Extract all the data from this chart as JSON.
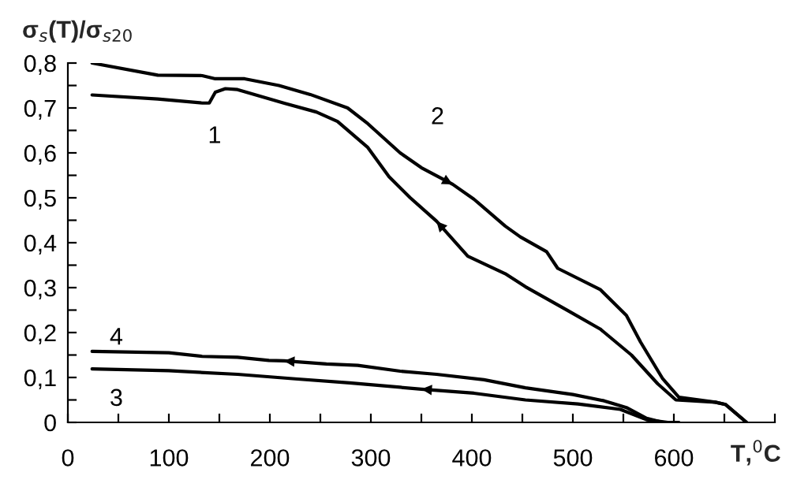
{
  "chart_data": {
    "type": "line",
    "xlabel": "T,$^{0}$C",
    "ylabel": "σ$_{s}$(T)/σ$_{s20}$",
    "xlim": [
      0,
      700
    ],
    "ylim": [
      0,
      0.8
    ],
    "xticks": [
      0,
      {
        "value": 50,
        "label": null
      },
      100,
      {
        "value": 150,
        "label": null
      },
      200,
      {
        "value": 250,
        "label": null
      },
      300,
      {
        "value": 350,
        "label": null
      },
      400,
      {
        "value": 450,
        "label": null
      },
      500,
      {
        "value": 550,
        "label": null
      },
      600,
      {
        "value": 650,
        "label": null
      },
      {
        "value": 700,
        "label": null
      }
    ],
    "yticks": [
      {
        "value": 0,
        "label": "0"
      },
      {
        "value": 0.05,
        "label": null
      },
      {
        "value": 0.1,
        "label": "0,1"
      },
      {
        "value": 0.15,
        "label": null
      },
      {
        "value": 0.2,
        "label": "0,2"
      },
      {
        "value": 0.25,
        "label": null
      },
      {
        "value": 0.3,
        "label": "0,3"
      },
      {
        "value": 0.35,
        "label": null
      },
      {
        "value": 0.4,
        "label": "0,4"
      },
      {
        "value": 0.45,
        "label": null
      },
      {
        "value": 0.5,
        "label": "0,5"
      },
      {
        "value": 0.55,
        "label": null
      },
      {
        "value": 0.6,
        "label": "0,6"
      },
      {
        "value": 0.65,
        "label": null
      },
      {
        "value": 0.7,
        "label": "0,7"
      },
      {
        "value": 0.75,
        "label": null
      },
      {
        "value": 0.8,
        "label": "0,8"
      }
    ],
    "grid": false,
    "legend": false,
    "marker": "none",
    "line_style": "solid",
    "series": [
      {
        "name": "1",
        "color": "#000000",
        "x": [
          672,
          651,
          641,
          602,
          584,
          558,
          527,
          495,
          453,
          433,
          396,
          365,
          339,
          318,
          297,
          267,
          246,
          215,
          168,
          156,
          146,
          140,
          133,
          89,
          24
        ],
        "values": [
          0,
          0.04,
          0.045,
          0.05,
          0.086,
          0.15,
          0.208,
          0.249,
          0.302,
          0.331,
          0.37,
          0.448,
          0.5,
          0.547,
          0.612,
          0.67,
          0.691,
          0.71,
          0.741,
          0.743,
          0.735,
          0.711,
          0.711,
          0.72,
          0.729
        ]
      },
      {
        "name": "2",
        "color": "#000000",
        "x": [
          24,
          89,
          133,
          146,
          175,
          209,
          240,
          277,
          297,
          329,
          350,
          381,
          402,
          433,
          448,
          474,
          485,
          527,
          553,
          567,
          589,
          605,
          641,
          651,
          672
        ],
        "values": [
          0.8,
          0.773,
          0.772,
          0.765,
          0.765,
          0.75,
          0.73,
          0.7,
          0.665,
          0.6,
          0.567,
          0.53,
          0.497,
          0.437,
          0.413,
          0.38,
          0.343,
          0.296,
          0.238,
          0.179,
          0.097,
          0.056,
          0.045,
          0.04,
          0
        ]
      },
      {
        "name": "3",
        "color": "#000000",
        "x": [
          600,
          594,
          573,
          547,
          505,
          453,
          402,
          350,
          279,
          225,
          168,
          100,
          24
        ],
        "values": [
          0,
          0,
          0.006,
          0.029,
          0.041,
          0.05,
          0.065,
          0.074,
          0.088,
          0.097,
          0.107,
          0.115,
          0.119
        ]
      },
      {
        "name": "4",
        "color": "#000000",
        "x": [
          605,
          589,
          573,
          553,
          531,
          500,
          453,
          412,
          365,
          329,
          287,
          256,
          214,
          199,
          168,
          133,
          100,
          24
        ],
        "values": [
          0,
          0,
          0.009,
          0.033,
          0.048,
          0.062,
          0.077,
          0.095,
          0.107,
          0.114,
          0.127,
          0.13,
          0.137,
          0.138,
          0.145,
          0.147,
          0.155,
          0.158
        ]
      }
    ]
  }
}
